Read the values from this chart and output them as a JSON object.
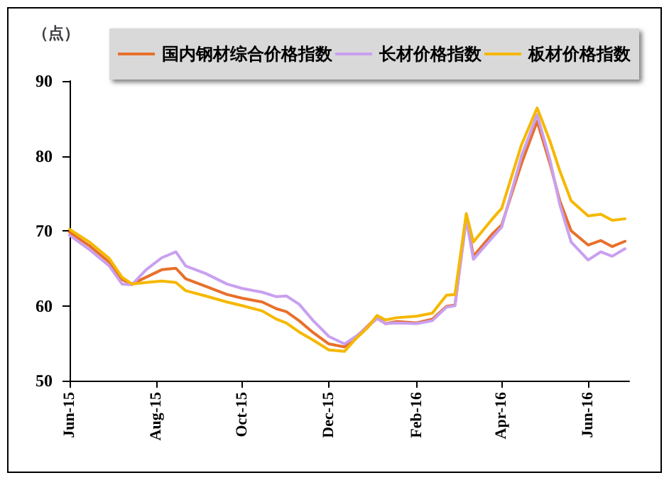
{
  "chart_data": {
    "type": "line",
    "ylabel": "（点）",
    "x": [
      "2015-06-01",
      "2015-06-15",
      "2015-06-29",
      "2015-07-08",
      "2015-07-15",
      "2015-07-25",
      "2015-08-05",
      "2015-08-15",
      "2015-08-22",
      "2015-09-05",
      "2015-09-20",
      "2015-10-01",
      "2015-10-15",
      "2015-10-25",
      "2015-11-01",
      "2015-11-10",
      "2015-11-20",
      "2015-12-01",
      "2015-12-12",
      "2015-12-20",
      "2015-12-28",
      "2016-01-04",
      "2016-01-10",
      "2016-01-18",
      "2016-02-01",
      "2016-02-12",
      "2016-02-22",
      "2016-02-28",
      "2016-03-07",
      "2016-03-12",
      "2016-03-25",
      "2016-04-01",
      "2016-04-15",
      "2016-04-26",
      "2016-05-05",
      "2016-05-12",
      "2016-05-20",
      "2016-06-01",
      "2016-06-10",
      "2016-06-18",
      "2016-06-27"
    ],
    "series": [
      {
        "name": "国内钢材综合价格指数",
        "color": "#e8702a",
        "values": [
          69.8,
          68.0,
          65.8,
          63.5,
          62.9,
          63.8,
          64.8,
          65.0,
          63.6,
          62.6,
          61.5,
          61.0,
          60.5,
          59.6,
          59.2,
          58.0,
          56.4,
          54.9,
          54.5,
          55.8,
          57.2,
          58.5,
          57.6,
          57.9,
          57.7,
          58.2,
          59.9,
          60.1,
          72.0,
          66.6,
          69.5,
          70.8,
          79.0,
          84.6,
          79.0,
          74.0,
          70.0,
          68.1,
          68.7,
          67.9,
          68.6
        ]
      },
      {
        "name": "长材价格指数",
        "color": "#c9a0f0",
        "values": [
          69.4,
          67.5,
          65.3,
          62.9,
          62.8,
          64.8,
          66.4,
          67.2,
          65.3,
          64.3,
          62.9,
          62.3,
          61.8,
          61.2,
          61.3,
          60.2,
          58.0,
          55.9,
          54.9,
          55.9,
          57.1,
          58.3,
          57.6,
          57.7,
          57.6,
          58.0,
          59.8,
          60.0,
          71.5,
          66.2,
          69.0,
          70.5,
          80.0,
          85.5,
          79.5,
          73.5,
          68.5,
          66.1,
          67.2,
          66.6,
          67.6
        ]
      },
      {
        "name": "板材价格指数",
        "color": "#f5b800",
        "values": [
          70.2,
          68.5,
          66.3,
          63.8,
          62.9,
          63.1,
          63.3,
          63.1,
          62.0,
          61.3,
          60.5,
          60.0,
          59.3,
          58.2,
          57.7,
          56.5,
          55.4,
          54.1,
          53.9,
          55.6,
          57.0,
          58.7,
          58.1,
          58.4,
          58.6,
          59.0,
          61.4,
          61.5,
          72.3,
          68.5,
          71.5,
          73.0,
          81.5,
          86.4,
          82.0,
          78.0,
          74.0,
          72.0,
          72.2,
          71.4,
          71.6
        ]
      }
    ],
    "xlim": [
      "2015-06-01",
      "2016-06-30"
    ],
    "xticks": [
      {
        "value": "2015-06-01",
        "label": "Jun-15"
      },
      {
        "value": "2015-08-01",
        "label": "Aug-15"
      },
      {
        "value": "2015-10-01",
        "label": "Oct-15"
      },
      {
        "value": "2015-12-01",
        "label": "Dec-15"
      },
      {
        "value": "2016-02-01",
        "label": "Feb-16"
      },
      {
        "value": "2016-04-01",
        "label": "Apr-16"
      },
      {
        "value": "2016-06-01",
        "label": "Jun-16"
      }
    ],
    "ylim": [
      50,
      90
    ],
    "yticks": [
      50,
      60,
      70,
      80,
      90
    ],
    "grid": false,
    "legend": "top",
    "marker": "none",
    "line_style": "solid"
  }
}
